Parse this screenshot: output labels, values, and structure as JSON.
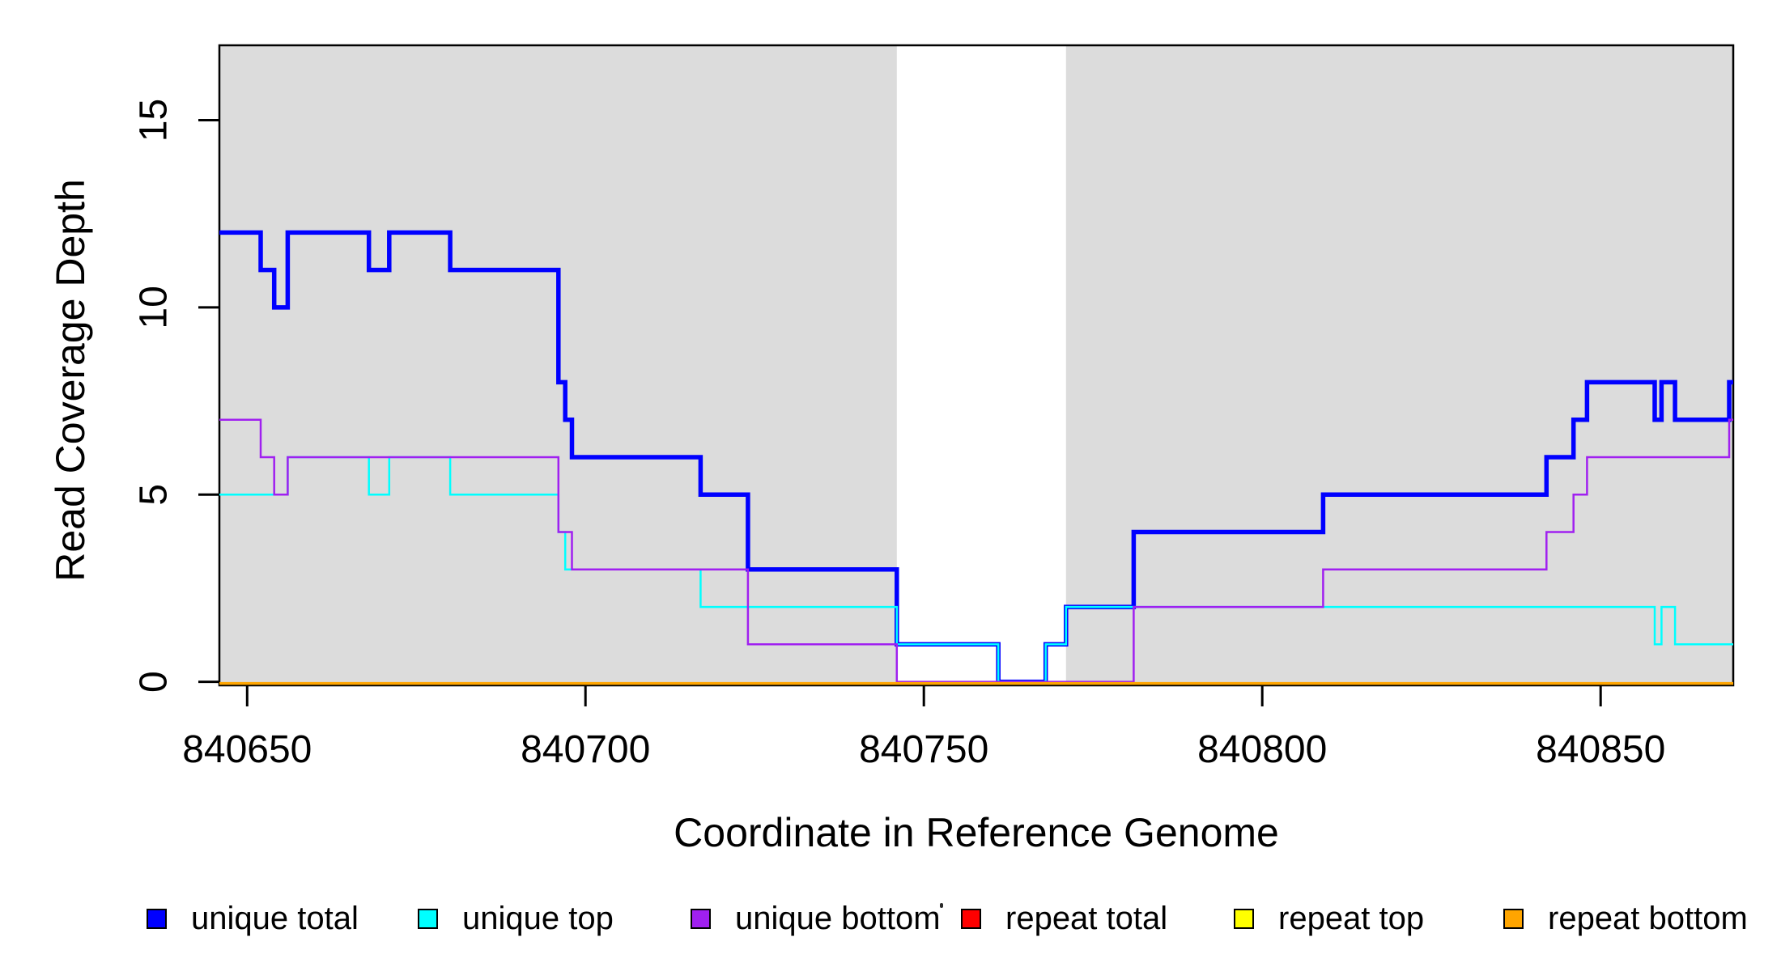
{
  "chart_data": {
    "type": "line",
    "subtype": "step-after-coverage-plot",
    "title": "",
    "xlabel": "Coordinate in Reference Genome",
    "ylabel": "Read Coverage Depth",
    "xlim": [
      840645.9,
      840869.6
    ],
    "ylim": [
      -0.095,
      17.0
    ],
    "x_ticks": [
      840650,
      840700,
      840750,
      840800,
      840850
    ],
    "y_ticks": [
      0,
      5,
      10,
      15
    ],
    "grid": "off",
    "background_color": "#ffffff",
    "shade_color": "#dcdcdc",
    "axis_color": "#000000",
    "shaded_regions": [
      [
        840645.9,
        840746
      ],
      [
        840771,
        840869.6
      ]
    ],
    "legend_position": "bottom",
    "series": [
      {
        "id": "unique-total",
        "name": "unique total",
        "color": "#0000ff",
        "group": "unique",
        "stroke_width": 5.5,
        "steps": [
          [
            840645.9,
            12
          ],
          [
            840652,
            11
          ],
          [
            840654,
            10
          ],
          [
            840656,
            12
          ],
          [
            840668,
            11
          ],
          [
            840671,
            12
          ],
          [
            840680,
            11
          ],
          [
            840696,
            8
          ],
          [
            840697,
            7
          ],
          [
            840698,
            6
          ],
          [
            840717,
            5
          ],
          [
            840724,
            3
          ],
          [
            840746,
            1
          ],
          [
            840761,
            0
          ],
          [
            840768,
            1
          ],
          [
            840771,
            2
          ],
          [
            840781,
            4
          ],
          [
            840809,
            5
          ],
          [
            840842,
            6
          ],
          [
            840846,
            7
          ],
          [
            840848,
            8
          ],
          [
            840858,
            7
          ],
          [
            840859,
            8
          ],
          [
            840861,
            7
          ],
          [
            840869,
            8
          ],
          [
            840869.6,
            8
          ]
        ]
      },
      {
        "id": "unique-top",
        "name": "unique top",
        "color": "#00ffff",
        "group": "unique",
        "stroke_width": 2.5,
        "steps": [
          [
            840645.9,
            5
          ],
          [
            840656,
            6
          ],
          [
            840668,
            5
          ],
          [
            840671,
            6
          ],
          [
            840680,
            5
          ],
          [
            840696,
            4
          ],
          [
            840697,
            3
          ],
          [
            840717,
            2
          ],
          [
            840746,
            1
          ],
          [
            840761,
            0
          ],
          [
            840768,
            1
          ],
          [
            840771,
            2
          ],
          [
            840858,
            1
          ],
          [
            840859,
            2
          ],
          [
            840861,
            1
          ],
          [
            840869.6,
            1
          ]
        ]
      },
      {
        "id": "unique-bottom",
        "name": "unique bottom",
        "color": "#a020f0",
        "group": "unique",
        "stroke_width": 2.5,
        "steps": [
          [
            840645.9,
            7
          ],
          [
            840652,
            6
          ],
          [
            840654,
            5
          ],
          [
            840656,
            6
          ],
          [
            840696,
            4
          ],
          [
            840698,
            3
          ],
          [
            840724,
            1
          ],
          [
            840746,
            0
          ],
          [
            840781,
            2
          ],
          [
            840809,
            3
          ],
          [
            840842,
            4
          ],
          [
            840846,
            5
          ],
          [
            840848,
            6
          ],
          [
            840869,
            7
          ],
          [
            840869.6,
            7
          ]
        ]
      },
      {
        "id": "repeat-total",
        "name": "repeat total",
        "color": "#ff0000",
        "group": "repeat",
        "stroke_width": 2.5,
        "steps": [
          [
            840645.9,
            0
          ],
          [
            840869.6,
            0
          ]
        ]
      },
      {
        "id": "repeat-top",
        "name": "repeat top",
        "color": "#ffff00",
        "group": "repeat",
        "stroke_width": 2.5,
        "steps": [
          [
            840645.9,
            0
          ],
          [
            840869.6,
            0
          ]
        ]
      },
      {
        "id": "repeat-bottom",
        "name": "repeat bottom",
        "color": "#ffa500",
        "group": "repeat",
        "stroke_width": 3.5,
        "steps": [
          [
            840645.9,
            0
          ],
          [
            840869.6,
            0
          ]
        ]
      }
    ]
  }
}
